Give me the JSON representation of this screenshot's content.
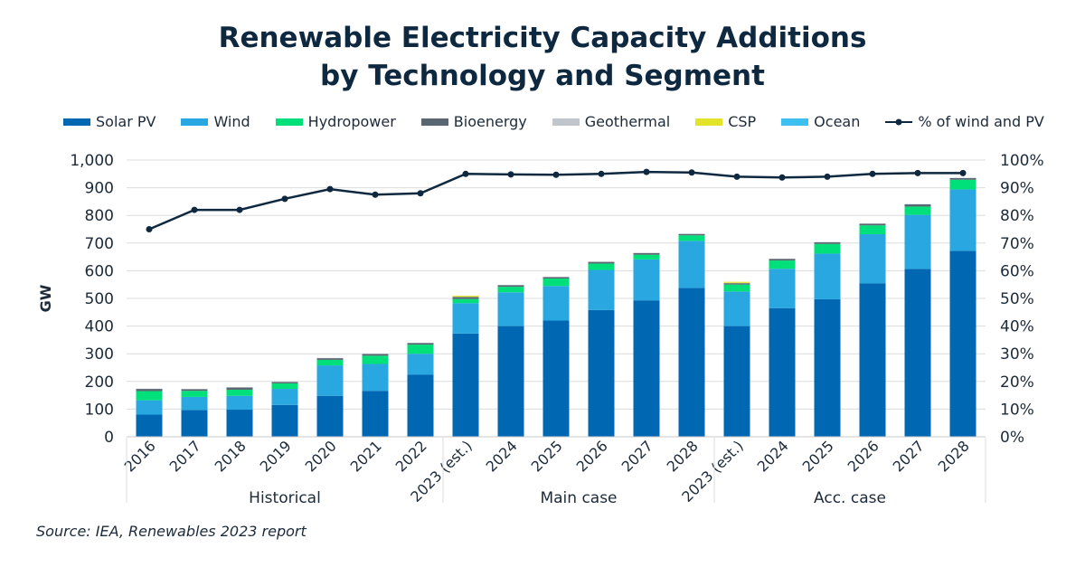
{
  "chart_data": {
    "type": "bar",
    "stacked": true,
    "title": "Renewable Electricity Capacity Additions",
    "subtitle": "by Technology and Segment",
    "ylabel": "GW",
    "ylim": [
      0,
      1000
    ],
    "y_ticks": [
      "0",
      "100",
      "200",
      "300",
      "400",
      "500",
      "600",
      "700",
      "800",
      "900",
      "1,000"
    ],
    "y2lim": [
      0,
      100
    ],
    "y2_ticks": [
      "0%",
      "10%",
      "20%",
      "30%",
      "40%",
      "50%",
      "60%",
      "70%",
      "80%",
      "90%",
      "100%"
    ],
    "grid": true,
    "legend_position": "top",
    "categories": [
      "2016",
      "2017",
      "2018",
      "2019",
      "2020",
      "2021",
      "2022",
      "2023 (est.)",
      "2024",
      "2025",
      "2026",
      "2027",
      "2028",
      "2023 (est.)",
      "2024",
      "2025",
      "2026",
      "2027",
      "2028"
    ],
    "groups": [
      {
        "label": "Historical",
        "count": 7
      },
      {
        "label": "Main case",
        "count": 6
      },
      {
        "label": "Acc. case",
        "count": 6
      }
    ],
    "series": [
      {
        "name": "Solar PV",
        "color": "#0068b3",
        "values": [
          80,
          97,
          98,
          115,
          148,
          166,
          225,
          373,
          400,
          420,
          458,
          493,
          538,
          400,
          465,
          497,
          555,
          607,
          672
        ]
      },
      {
        "name": "Wind",
        "color": "#29a7e0",
        "values": [
          52,
          47,
          50,
          58,
          110,
          97,
          75,
          110,
          122,
          125,
          145,
          148,
          170,
          125,
          142,
          165,
          177,
          195,
          222
        ]
      },
      {
        "name": "Hydropower",
        "color": "#00e07a",
        "values": [
          33,
          22,
          22,
          20,
          20,
          30,
          33,
          15,
          20,
          27,
          23,
          17,
          20,
          25,
          30,
          35,
          32,
          30,
          35
        ]
      },
      {
        "name": "Bioenergy",
        "color": "#5a6670",
        "values": [
          8,
          6,
          8,
          5,
          6,
          6,
          6,
          7,
          6,
          5,
          6,
          6,
          5,
          5,
          6,
          6,
          6,
          8,
          6
        ]
      },
      {
        "name": "Geothermal",
        "color": "#c0c6cc",
        "values": [
          1,
          1,
          1,
          1,
          1,
          1,
          1,
          1,
          1,
          1,
          1,
          1,
          1,
          1,
          1,
          1,
          1,
          1,
          1
        ]
      },
      {
        "name": "CSP",
        "color": "#e3e32a",
        "values": [
          0,
          0,
          0,
          0,
          0,
          0,
          0,
          4,
          0,
          0,
          0,
          0,
          0,
          4,
          0,
          0,
          0,
          0,
          0
        ]
      },
      {
        "name": "Ocean",
        "color": "#3cc0f0",
        "values": [
          0,
          0,
          0,
          0,
          0,
          0,
          0,
          0,
          0,
          0,
          0,
          0,
          0,
          0,
          0,
          0,
          0,
          0,
          0
        ]
      }
    ],
    "line": {
      "name": "% of wind and PV",
      "color": "#0e2840",
      "axis": "right",
      "values": [
        75,
        82,
        82,
        86,
        89.5,
        87.5,
        88,
        95,
        94.8,
        94.7,
        95,
        95.7,
        95.5,
        94,
        93.7,
        94,
        95,
        95.3,
        95.3
      ]
    }
  },
  "source": "Source: IEA, Renewables 2023 report"
}
